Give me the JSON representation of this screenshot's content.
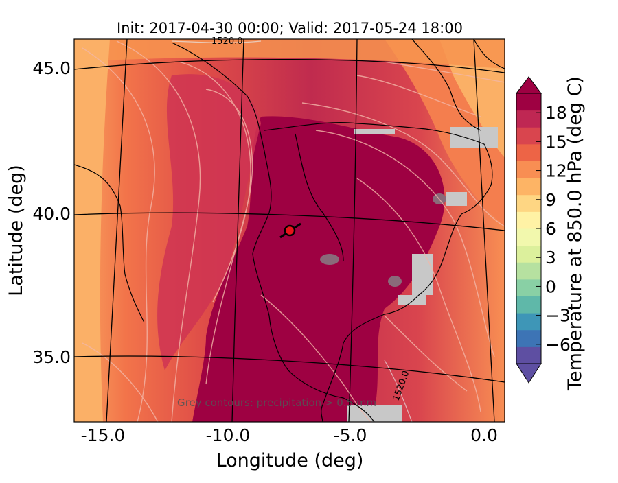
{
  "title": "Init: 2017-04-30 00:00; Valid: 2017-05-24 18:00",
  "xlabel": "Longitude (deg)",
  "ylabel": "Latitude (deg)",
  "x_ticks": [
    "-15.0",
    "-10.0",
    "-5.0",
    "0.0"
  ],
  "y_ticks": [
    "45.0",
    "40.0",
    "35.0"
  ],
  "colorbar": {
    "label": "Temperature at 850.0 hPa (deg C)",
    "ticks": [
      "18",
      "15",
      "12",
      "9",
      "6",
      "3",
      "0",
      "−3",
      "−6"
    ],
    "tick_values": [
      18,
      15,
      12,
      9,
      6,
      3,
      0,
      -3,
      -6
    ],
    "range": [
      -8,
      20
    ],
    "colors_low_to_high": [
      "#5e4fa2",
      "#3d74b5",
      "#3e96b7",
      "#5fb8a9",
      "#89d0a5",
      "#b6e1a0",
      "#dcf09c",
      "#f2f8ad",
      "#fff2a5",
      "#fed683",
      "#fdb465",
      "#f88e53",
      "#ed6446",
      "#d9454e",
      "#bf2753",
      "#9e0142"
    ]
  },
  "annotations": {
    "contour_label_top": "1520.0",
    "contour_label_south": "1520.0",
    "precip_note": "Grey contours: precipitation > 0.5 mm"
  },
  "marker": {
    "lon": -7.6,
    "lat": 39.4,
    "color": "#e8141a"
  }
}
